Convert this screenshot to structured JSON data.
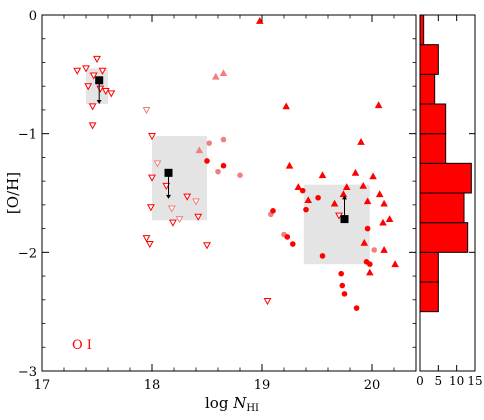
{
  "chart_data": [
    {
      "type": "scatter",
      "xlabel_prefix": "log ",
      "xlabel_var": "N",
      "xlabel_sub": "HI",
      "ylabel": "[O/H]",
      "xlim": [
        17,
        20.4
      ],
      "ylim": [
        -3,
        0
      ],
      "xticks": [
        17,
        18,
        19,
        20
      ],
      "xtick_labels": [
        "17",
        "18",
        "19",
        "20"
      ],
      "yticks": [
        0,
        -1,
        -2,
        -3
      ],
      "ytick_labels": [
        "0",
        "−1",
        "−2",
        "−3"
      ],
      "grid": false,
      "species_label": "O I",
      "colors": {
        "detection": "#ff0000",
        "light": "#f08080",
        "bin_box": "#e4e4e4",
        "bin_marker": "#000000"
      },
      "series": {
        "upper_limits": [
          {
            "x": 17.32,
            "y": -0.47
          },
          {
            "x": 17.4,
            "y": -0.45
          },
          {
            "x": 17.47,
            "y": -0.51
          },
          {
            "x": 17.5,
            "y": -0.37
          },
          {
            "x": 17.55,
            "y": -0.47
          },
          {
            "x": 17.42,
            "y": -0.6
          },
          {
            "x": 17.46,
            "y": -0.77
          },
          {
            "x": 17.46,
            "y": -0.93
          },
          {
            "x": 17.53,
            "y": -0.62
          },
          {
            "x": 17.58,
            "y": -0.64
          },
          {
            "x": 17.63,
            "y": -0.66
          },
          {
            "x": 18.0,
            "y": -1.02
          },
          {
            "x": 18.0,
            "y": -1.37
          },
          {
            "x": 17.99,
            "y": -1.62
          },
          {
            "x": 17.95,
            "y": -1.88
          },
          {
            "x": 17.98,
            "y": -1.93
          },
          {
            "x": 18.13,
            "y": -1.44
          },
          {
            "x": 18.19,
            "y": -1.75
          },
          {
            "x": 18.32,
            "y": -1.53
          },
          {
            "x": 18.42,
            "y": -1.7
          },
          {
            "x": 18.5,
            "y": -1.94
          },
          {
            "x": 19.05,
            "y": -2.41
          },
          {
            "x": 19.7,
            "y": -1.69
          }
        ],
        "upper_limits_light": [
          {
            "x": 17.95,
            "y": -0.8
          },
          {
            "x": 18.05,
            "y": -1.25
          },
          {
            "x": 18.18,
            "y": -1.63
          },
          {
            "x": 18.25,
            "y": -1.72
          },
          {
            "x": 18.4,
            "y": -1.57
          }
        ],
        "lower_limits": [
          {
            "x": 18.98,
            "y": -0.05
          },
          {
            "x": 19.22,
            "y": -0.77
          },
          {
            "x": 19.25,
            "y": -1.27
          },
          {
            "x": 19.33,
            "y": -1.45
          },
          {
            "x": 19.42,
            "y": -1.56
          },
          {
            "x": 19.55,
            "y": -1.35
          },
          {
            "x": 19.66,
            "y": -1.59
          },
          {
            "x": 19.74,
            "y": -1.51
          },
          {
            "x": 19.9,
            "y": -1.07
          },
          {
            "x": 19.92,
            "y": -1.44
          },
          {
            "x": 20.01,
            "y": -1.36
          },
          {
            "x": 20.06,
            "y": -0.76
          },
          {
            "x": 19.96,
            "y": -1.57
          },
          {
            "x": 20.07,
            "y": -1.51
          },
          {
            "x": 20.11,
            "y": -1.59
          },
          {
            "x": 20.1,
            "y": -1.75
          },
          {
            "x": 20.11,
            "y": -1.98
          },
          {
            "x": 20.16,
            "y": -1.72
          },
          {
            "x": 20.21,
            "y": -2.1
          },
          {
            "x": 19.98,
            "y": -2.17
          },
          {
            "x": 19.93,
            "y": -1.92
          },
          {
            "x": 19.77,
            "y": -1.45
          },
          {
            "x": 19.85,
            "y": -1.33
          }
        ],
        "lower_limits_light": [
          {
            "x": 18.43,
            "y": -1.14
          },
          {
            "x": 18.58,
            "y": -0.52
          },
          {
            "x": 18.65,
            "y": -0.49
          }
        ],
        "detections": [
          {
            "x": 18.5,
            "y": -1.23
          },
          {
            "x": 18.65,
            "y": -1.27
          },
          {
            "x": 19.37,
            "y": -1.48
          },
          {
            "x": 19.51,
            "y": -1.54
          },
          {
            "x": 19.4,
            "y": -1.64
          },
          {
            "x": 19.1,
            "y": -1.65
          },
          {
            "x": 19.23,
            "y": -1.87
          },
          {
            "x": 19.28,
            "y": -1.93
          },
          {
            "x": 19.55,
            "y": -2.03
          },
          {
            "x": 19.72,
            "y": -2.18
          },
          {
            "x": 19.73,
            "y": -2.28
          },
          {
            "x": 19.75,
            "y": -2.35
          },
          {
            "x": 19.86,
            "y": -2.47
          },
          {
            "x": 19.98,
            "y": -2.1
          },
          {
            "x": 19.96,
            "y": -1.8
          },
          {
            "x": 19.95,
            "y": -2.08
          }
        ],
        "detections_light": [
          {
            "x": 18.52,
            "y": -1.08
          },
          {
            "x": 18.6,
            "y": -1.32
          },
          {
            "x": 18.8,
            "y": -1.35
          },
          {
            "x": 18.65,
            "y": -1.05
          },
          {
            "x": 19.08,
            "y": -1.68
          },
          {
            "x": 19.2,
            "y": -1.85
          },
          {
            "x": 20.02,
            "y": -1.98
          }
        ]
      },
      "bins": [
        {
          "x0": 17.4,
          "x1": 17.6,
          "y0": -0.75,
          "y1": -0.45,
          "mean_x": 17.52,
          "mean_y": -0.55,
          "arrow_to": -0.75
        },
        {
          "x0": 18.0,
          "x1": 18.5,
          "y0": -1.73,
          "y1": -1.02,
          "mean_x": 18.15,
          "mean_y": -1.33,
          "arrow_to": -1.55
        },
        {
          "x0": 19.38,
          "x1": 19.98,
          "y0": -2.1,
          "y1": -1.43,
          "mean_x": 19.75,
          "mean_y": -1.72,
          "arrow_to": -1.52
        }
      ]
    },
    {
      "type": "bar",
      "orientation": "horizontal",
      "xlim": [
        0,
        15
      ],
      "xticks": [
        0,
        5,
        10,
        15
      ],
      "xtick_labels": [
        "0",
        "5",
        "10",
        "15"
      ],
      "bin_edges": [
        -2.5,
        -2.25,
        -2.0,
        -1.75,
        -1.5,
        -1.25,
        -1.0,
        -0.75,
        -0.5,
        -0.25,
        0.0
      ],
      "counts": [
        5,
        5,
        13,
        12,
        14,
        7,
        7,
        4,
        5,
        1
      ],
      "color": "#ff0000"
    }
  ]
}
